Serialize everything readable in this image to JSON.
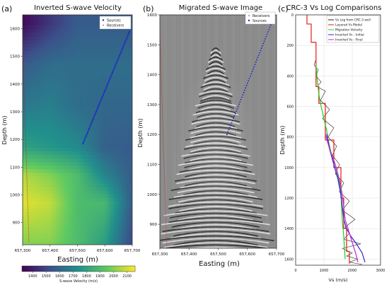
{
  "panels": [
    {
      "letter": "(a)",
      "title": "Inverted S-wave Velocity",
      "xlabel": "Easting (m)",
      "ylabel": "Depth (m)",
      "legend": [
        "Sources",
        "Receivers"
      ]
    },
    {
      "letter": "(b)",
      "title": "Migrated S-wave Image",
      "xlabel": "Easting (m)",
      "ylabel": "Depth (m)",
      "legend": [
        "Receivers",
        "Sources"
      ]
    },
    {
      "letter": "(c)",
      "title": "CRC-3 Vs Log Comparisons",
      "xlabel": "Vs (m/s)",
      "ylabel": "Depth (m)"
    }
  ],
  "colorbar": {
    "label": "S-wave Velocity (m/s)",
    "ticks": [
      "1400",
      "1500",
      "1600",
      "1700",
      "1800",
      "1900",
      "2000",
      "2100"
    ]
  },
  "chart_data": [
    {
      "type": "heatmap",
      "title": "Inverted S-wave Velocity",
      "xlabel": "Easting (m)",
      "ylabel": "Depth (m)",
      "xlim": [
        657300,
        657700
      ],
      "ylim": [
        1650,
        820
      ],
      "x_ticks": [
        "657,300",
        "657,400",
        "657,500",
        "657,600",
        "657,700"
      ],
      "y_ticks": [
        "900",
        "1000",
        "1100",
        "1200",
        "1300",
        "1400",
        "1500",
        "1600"
      ],
      "colormap": "viridis",
      "clim": [
        1320,
        2160
      ],
      "grid_x": [
        657300,
        657400,
        657500,
        657600,
        657700
      ],
      "grid_depth": [
        850,
        1000,
        1150,
        1300,
        1400,
        1500,
        1650
      ],
      "velocity_grid": [
        [
          1340,
          1460,
          1560,
          1560,
          1560
        ],
        [
          1560,
          1620,
          1620,
          1620,
          1620
        ],
        [
          1660,
          1680,
          1620,
          1600,
          1600
        ],
        [
          1800,
          1760,
          1720,
          1580,
          1560
        ],
        [
          2060,
          2000,
          1900,
          1700,
          1560
        ],
        [
          2120,
          2080,
          1900,
          1880,
          1560
        ],
        [
          2000,
          2000,
          1900,
          1780,
          1500
        ]
      ],
      "series": [
        {
          "name": "Sources",
          "x": [
            657323,
            657300
          ],
          "y": [
            830,
            1550
          ],
          "color": "#cc1111"
        },
        {
          "name": "Receivers",
          "x": [
            657520,
            657690
          ],
          "y": [
            1185,
            1590
          ],
          "color": "#1a22cc"
        }
      ]
    },
    {
      "type": "heatmap",
      "title": "Migrated S-wave Image",
      "xlabel": "Easting (m)",
      "ylabel": "Depth (m)",
      "xlim": [
        657300,
        657700
      ],
      "ylim": [
        1600,
        820
      ],
      "x_ticks": [
        "657,300",
        "657,400",
        "657,500",
        "657,600",
        "657,700"
      ],
      "y_ticks": [
        "900",
        "1000",
        "1100",
        "1200",
        "1300",
        "1400",
        "1500",
        "1600"
      ],
      "colormap": "gray",
      "series": [
        {
          "name": "Receivers",
          "x": [
            657530,
            657690
          ],
          "y": [
            1200,
            1590
          ],
          "color": "#1a22cc"
        },
        {
          "name": "Sources",
          "x": [
            657323,
            657300
          ],
          "y": [
            830,
            1550
          ],
          "color": "#cc1111"
        }
      ]
    },
    {
      "type": "line",
      "title": "CRC-3 Vs Log Comparisons",
      "xlabel": "Vs (m/s)",
      "ylabel": "Depth (m)",
      "xlim": [
        0,
        3000
      ],
      "ylim": [
        1640,
        0
      ],
      "x_ticks": [
        "0",
        "1000",
        "2000",
        "3000"
      ],
      "y_ticks": [
        "0",
        "200",
        "400",
        "600",
        "800",
        "1000",
        "1200",
        "1400",
        "1600"
      ],
      "grid": true,
      "legend_position": "top-right",
      "series": [
        {
          "name": "Vs Log from CRC-3 well",
          "color": "#222222",
          "x": [
            700,
            650,
            800,
            720,
            900,
            760,
            1050,
            880,
            1200,
            950,
            1350,
            1150,
            1450,
            1300,
            1550,
            1400,
            1700,
            1550,
            1900,
            1650,
            2100,
            1750,
            1900,
            1700,
            2300,
            1650,
            2000,
            1800,
            2200,
            1900,
            2350
          ],
          "y": [
            300,
            330,
            360,
            400,
            440,
            470,
            500,
            560,
            620,
            680,
            740,
            800,
            860,
            920,
            980,
            1040,
            1100,
            1160,
            1220,
            1280,
            1340,
            1390,
            1430,
            1470,
            1500,
            1530,
            1560,
            1580,
            1600,
            1620,
            1635
          ]
        },
        {
          "name": "Layered Vs Model",
          "color": "#e41a1c",
          "x": [
            400,
            400,
            550,
            550,
            720,
            720,
            820,
            820,
            1050,
            1050,
            1350,
            1350,
            1600,
            1600,
            1700,
            1700,
            1800,
            1800,
            1900,
            1900
          ],
          "y": [
            0,
            60,
            60,
            180,
            180,
            470,
            470,
            580,
            580,
            820,
            820,
            1000,
            1000,
            1200,
            1200,
            1400,
            1400,
            1550,
            1550,
            1630
          ]
        },
        {
          "name": "Migration Velocity",
          "color": "#22cc22",
          "x": [
            720,
            760,
            820,
            900,
            1000,
            1100,
            1150,
            1250,
            1400,
            1500,
            1600,
            1620,
            1650,
            1700,
            1750
          ],
          "y": [
            330,
            420,
            520,
            600,
            680,
            760,
            820,
            900,
            980,
            1060,
            1150,
            1250,
            1350,
            1450,
            1600
          ]
        },
        {
          "name": "Inverted Vs - Initial",
          "color": "#3322cc",
          "x": [
            1100,
            1200,
            1350,
            1500,
            1600,
            1650,
            1700,
            1800,
            1950,
            2150,
            2350,
            2450
          ],
          "y": [
            780,
            880,
            980,
            1080,
            1180,
            1260,
            1340,
            1400,
            1450,
            1500,
            1560,
            1620
          ]
        },
        {
          "name": "Inverted Vs - Final",
          "color": "#cc22cc",
          "x": [
            1050,
            1200,
            1400,
            1550,
            1650,
            1700,
            1750,
            1850,
            1950,
            2050,
            2150,
            2200
          ],
          "y": [
            780,
            880,
            980,
            1080,
            1180,
            1260,
            1340,
            1400,
            1460,
            1520,
            1580,
            1620
          ]
        }
      ]
    }
  ]
}
